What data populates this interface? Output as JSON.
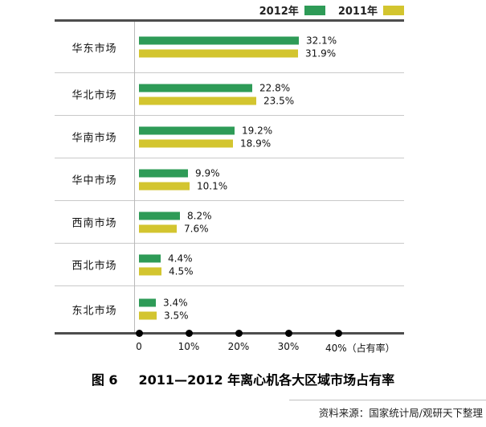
{
  "legend": [
    {
      "label": "2012年",
      "color": "#2e9b57"
    },
    {
      "label": "2011年",
      "color": "#d3c52f"
    }
  ],
  "chart_data": {
    "type": "bar",
    "orientation": "horizontal",
    "title": "2011—2012 年离心机各大区域市场占有率",
    "categories": [
      "华东市场",
      "华北市场",
      "华南市场",
      "华中市场",
      "西南市场",
      "西北市场",
      "东北市场"
    ],
    "series": [
      {
        "name": "2012年",
        "color": "#2e9b57",
        "values": [
          32.1,
          22.8,
          19.2,
          9.9,
          8.2,
          4.4,
          3.4
        ],
        "labels": [
          "32.1%",
          "22.8%",
          "19.2%",
          "9.9%",
          "8.2%",
          "4.4%",
          "3.4%"
        ]
      },
      {
        "name": "2011年",
        "color": "#d3c52f",
        "values": [
          31.9,
          23.5,
          18.9,
          10.1,
          7.6,
          4.5,
          3.5
        ],
        "labels": [
          "31.9%",
          "23.5%",
          "18.9%",
          "10.1%",
          "7.6%",
          "4.5%",
          "3.5%"
        ]
      }
    ],
    "x_axis": {
      "ticks": [
        "0",
        "10%",
        "20%",
        "30%",
        "40%"
      ],
      "tick_values": [
        0,
        10,
        20,
        30,
        40
      ],
      "suffix": "（占有率）",
      "xlim": [
        0,
        48
      ]
    },
    "legend_position": "top-right",
    "grid": "row-separators"
  },
  "caption": {
    "figure_label": "图 6",
    "title": "2011—2012 年离心机各大区域市场占有率"
  },
  "source": "资料来源：国家统计局/观研天下整理"
}
